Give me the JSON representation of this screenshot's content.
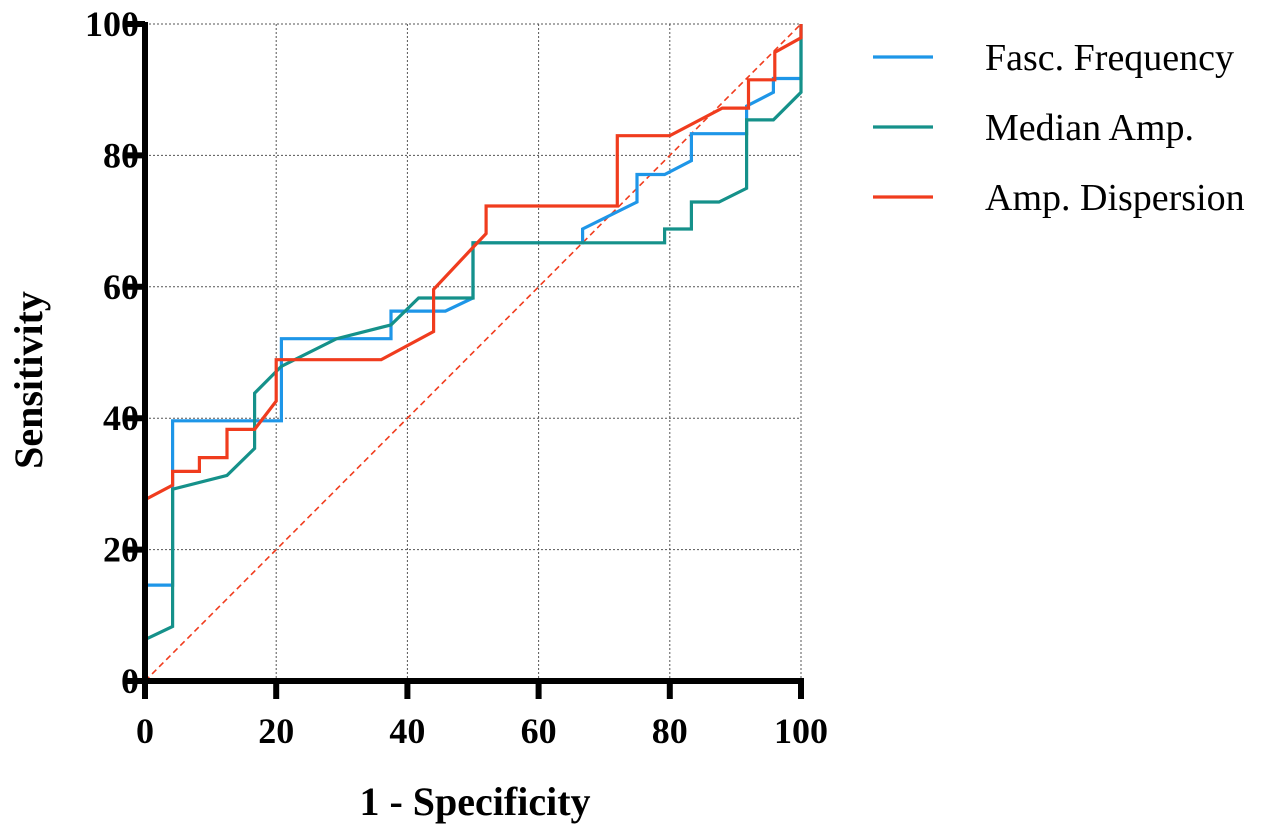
{
  "chart_data": {
    "type": "line",
    "xlabel": "1 - Specificity",
    "ylabel": "Sensitivity",
    "xlim": [
      0,
      100
    ],
    "ylim": [
      0,
      100
    ],
    "xticks": [
      "0",
      "20",
      "40",
      "60",
      "80",
      "100"
    ],
    "yticks": [
      "0",
      "20",
      "40",
      "60",
      "80",
      "100"
    ],
    "grid": true,
    "legend_position": "top-right outside",
    "reference_line": {
      "x": [
        0,
        100
      ],
      "y": [
        0,
        100
      ],
      "style": "dashed",
      "color": "#f03c1e"
    },
    "series": [
      {
        "name": "Fasc. Frequency",
        "color": "#1e96e8",
        "x": [
          0,
          0,
          4.2,
          4.2,
          20.8,
          20.8,
          37.5,
          37.5,
          45.8,
          50,
          50,
          66.7,
          66.7,
          75,
          75,
          79.2,
          83.3,
          83.3,
          91.7,
          91.7,
          95.8,
          95.8,
          100,
          100
        ],
        "y": [
          0,
          14.6,
          14.6,
          39.6,
          39.6,
          52.1,
          52.1,
          56.3,
          56.3,
          58.3,
          66.7,
          66.7,
          68.8,
          72.9,
          77.1,
          77.1,
          79.2,
          83.3,
          83.3,
          87.5,
          89.6,
          91.7,
          91.7,
          100
        ]
      },
      {
        "name": "Median Amp.",
        "color": "#15918a",
        "x": [
          0,
          0,
          4.2,
          4.2,
          12.5,
          16.7,
          16.7,
          20.8,
          29.2,
          37.5,
          41.7,
          50,
          50,
          79.2,
          79.2,
          83.3,
          83.3,
          87.5,
          91.7,
          91.7,
          95.8,
          100,
          100
        ],
        "y": [
          0,
          6.3,
          8.3,
          29.2,
          31.3,
          35.4,
          43.8,
          47.9,
          52.1,
          54.2,
          58.3,
          58.3,
          66.7,
          66.7,
          68.8,
          68.8,
          72.9,
          72.9,
          75,
          85.4,
          85.4,
          89.6,
          100
        ]
      },
      {
        "name": "Amp. Dispersion",
        "color": "#f03c1e",
        "x": [
          0,
          0,
          4.2,
          4.2,
          8.3,
          8.3,
          12.5,
          12.5,
          16.7,
          20,
          20,
          36,
          44,
          44,
          50,
          52,
          52,
          72,
          72,
          80,
          88,
          92,
          92,
          96,
          96,
          100,
          100
        ],
        "y": [
          0,
          27.6,
          29.8,
          31.9,
          31.9,
          34,
          34,
          38.3,
          38.3,
          42.6,
          48.9,
          48.9,
          53.2,
          59.6,
          66,
          68.1,
          72.3,
          72.3,
          83,
          83,
          87.2,
          87.2,
          91.5,
          91.5,
          95.7,
          97.9,
          100
        ]
      }
    ]
  }
}
